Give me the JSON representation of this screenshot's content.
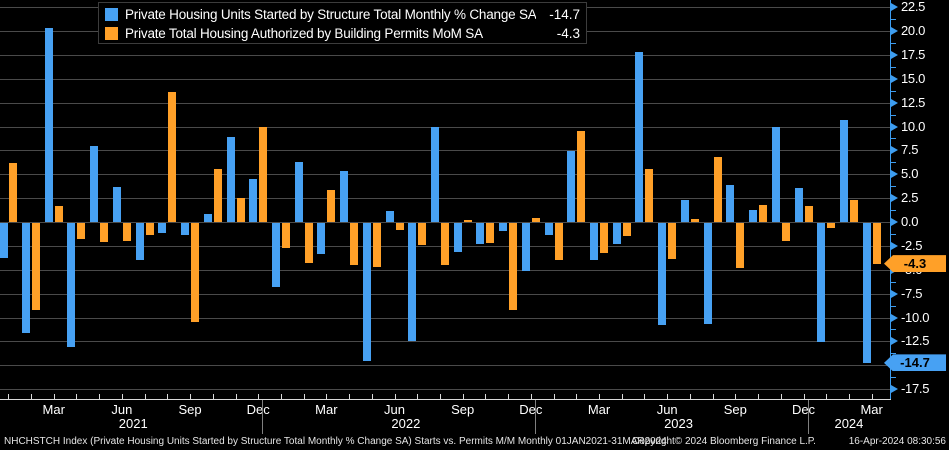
{
  "legend": {
    "items": [
      {
        "label": "Private Housing Units Started by Structure Total Monthly % Change SA",
        "value": "-14.7",
        "swatch_color": "#47a1f3"
      },
      {
        "label": "Private Total Housing Authorized by Building Permits MoM SA",
        "value": "-4.3",
        "swatch_color": "#ffa028"
      }
    ]
  },
  "chart_data": {
    "type": "bar",
    "title": "Starts vs. Permits M/M",
    "x": [
      "Jan 2021",
      "Feb 2021",
      "Mar 2021",
      "Apr 2021",
      "May 2021",
      "Jun 2021",
      "Jul 2021",
      "Aug 2021",
      "Sep 2021",
      "Oct 2021",
      "Nov 2021",
      "Dec 2021",
      "Jan 2022",
      "Feb 2022",
      "Mar 2022",
      "Apr 2022",
      "May 2022",
      "Jun 2022",
      "Jul 2022",
      "Aug 2022",
      "Sep 2022",
      "Oct 2022",
      "Nov 2022",
      "Dec 2022",
      "Jan 2023",
      "Feb 2023",
      "Mar 2023",
      "Apr 2023",
      "May 2023",
      "Jun 2023",
      "Jul 2023",
      "Aug 2023",
      "Sep 2023",
      "Oct 2023",
      "Nov 2023",
      "Dec 2023",
      "Jan 2024",
      "Feb 2024",
      "Mar 2024"
    ],
    "series": [
      {
        "name": "Private Housing Units Started by Structure Total Monthly % Change SA",
        "color": "#47a1f3",
        "values": [
          -3.7,
          -11.5,
          20.3,
          -13.0,
          8.0,
          3.7,
          -3.9,
          -1.0,
          -1.3,
          0.8,
          8.9,
          4.5,
          -6.7,
          6.3,
          -3.2,
          5.3,
          -14.5,
          1.1,
          -12.4,
          9.9,
          -3.0,
          -2.2,
          -0.8,
          -5.0,
          -1.3,
          7.4,
          -3.9,
          -2.2,
          17.8,
          -10.7,
          2.3,
          -10.6,
          3.9,
          1.3,
          10.0,
          3.6,
          -12.5,
          10.7,
          -14.7
        ]
      },
      {
        "name": "Private Total Housing Authorized by Building Permits MoM SA",
        "color": "#ffa028",
        "values": [
          6.2,
          -9.1,
          1.7,
          -1.7,
          -2.0,
          -1.9,
          -1.3,
          13.6,
          -10.4,
          5.5,
          2.5,
          10.0,
          -2.6,
          -4.2,
          3.3,
          -4.4,
          -4.6,
          -0.7,
          -2.3,
          -4.4,
          0.2,
          -2.1,
          -9.1,
          0.4,
          -3.9,
          9.5,
          -3.1,
          -1.4,
          5.5,
          -3.8,
          0.3,
          6.8,
          -4.7,
          1.8,
          -1.9,
          1.7,
          -0.5,
          2.3,
          -4.3
        ]
      }
    ],
    "ylim": [
      -18.6,
      23.2
    ],
    "yticks": [
      22.5,
      20.0,
      17.5,
      15.0,
      12.5,
      10.0,
      7.5,
      5.0,
      2.5,
      0.0,
      -2.5,
      -5.0,
      -7.5,
      -10.0,
      -12.5,
      -15.0,
      -17.5
    ],
    "ytick_labels": [
      "22.5",
      "20.0",
      "17.5",
      "15.0",
      "12.5",
      "10.0",
      "7.5",
      "5.0",
      "2.5",
      "0.0",
      "-2.5",
      "-5.0",
      "-7.5",
      "-10.0",
      "-12.5",
      "-15.0",
      "-17.5"
    ],
    "grid": "horizontal",
    "legend_position": "top-left",
    "axis_badges": [
      {
        "label": "-4.3",
        "value": -4.3,
        "color": "#ffa028"
      },
      {
        "label": "-14.7",
        "value": -14.7,
        "color": "#47a1f3"
      }
    ]
  },
  "x_axis": {
    "month_labels": [
      {
        "i": 2,
        "text": "Mar"
      },
      {
        "i": 5,
        "text": "Jun"
      },
      {
        "i": 8,
        "text": "Sep"
      },
      {
        "i": 11,
        "text": "Dec"
      },
      {
        "i": 14,
        "text": "Mar"
      },
      {
        "i": 17,
        "text": "Jun"
      },
      {
        "i": 20,
        "text": "Sep"
      },
      {
        "i": 23,
        "text": "Dec"
      },
      {
        "i": 26,
        "text": "Mar"
      },
      {
        "i": 29,
        "text": "Jun"
      },
      {
        "i": 32,
        "text": "Sep"
      },
      {
        "i": 35,
        "text": "Dec"
      },
      {
        "i": 38,
        "text": "Mar"
      }
    ],
    "year_labels": [
      {
        "text": "2021",
        "from": 0,
        "to": 11
      },
      {
        "text": "2022",
        "from": 12,
        "to": 23
      },
      {
        "text": "2023",
        "from": 24,
        "to": 35
      },
      {
        "text": "2024",
        "from": 36,
        "to": 38
      }
    ],
    "year_separators_after": [
      11,
      23,
      35
    ]
  },
  "footer": {
    "left": "NHCHSTCH Index (Private Housing Units Started by Structure Total Monthly % Change SA) Starts vs. Permits M/M  Monthly 01JAN2021-31MAR2024",
    "copyright": "Copyright© 2024 Bloomberg Finance L.P.",
    "timestamp": "16-Apr-2024 08:30:56"
  },
  "colors": {
    "background": "#000000",
    "starts_blue": "#47a1f3",
    "permits_orange": "#ffa028",
    "gridline": "#4a4a4a",
    "y_axis": "#3d9df0",
    "x_axis_line": "#d8d8d8",
    "text": "#ffffff"
  }
}
